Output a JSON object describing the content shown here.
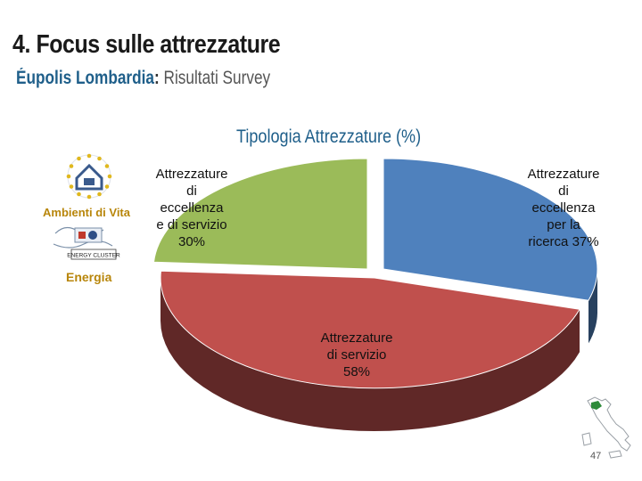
{
  "header": {
    "title": "4. Focus sulle attrezzature",
    "subtitle_org": "Éupolis Lombardia",
    "subtitle_sep": ":",
    "subtitle_rest": " Risultati Survey"
  },
  "logos": {
    "ambienti_label": "Ambienti di Vita",
    "energy_cluster_text": "ENERGY CLUSTER",
    "energia_label": "Energia"
  },
  "page": {
    "number": "47"
  },
  "chart_data": {
    "type": "pie",
    "title": "Tipologia Attrezzature (%)",
    "slices": [
      {
        "label": "Attrezzature di eccellenza per la ricerca",
        "value": 37,
        "color": "#4f81bd"
      },
      {
        "label": "Attrezzature di servizio",
        "value": 58,
        "color": "#c0504d"
      },
      {
        "label": "Attrezzature di eccellenza e di servizio",
        "value": 30,
        "color": "#9bbb59"
      }
    ],
    "labels": [
      [
        "Attrezzature",
        "di",
        "eccellenza",
        "per la",
        "ricerca 37%"
      ],
      [
        "Attrezzature",
        "di servizio",
        "58%"
      ],
      [
        "Attrezzature",
        "di",
        "eccellenza",
        "e di servizio",
        "30%"
      ]
    ],
    "style": "3d-exploded"
  }
}
